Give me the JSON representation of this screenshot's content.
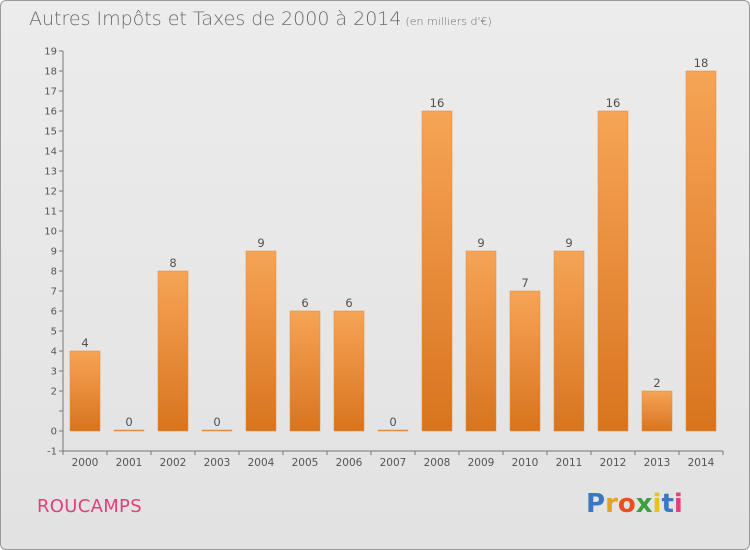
{
  "title": "Autres Impôts et Taxes de 2000 à 2014",
  "title_unit": "(en milliers d'€)",
  "place_name": "ROUCAMPS",
  "logo": {
    "letters": [
      "P",
      "r",
      "o",
      "x",
      "i",
      "t",
      "i"
    ],
    "colors": [
      "#3a78c4",
      "#e8a020",
      "#e85020",
      "#3aa040",
      "#e8c020",
      "#3a78c4",
      "#e04080"
    ]
  },
  "colors": {
    "bar_light": "#f6a456",
    "bar_dark": "#d8741e",
    "background": "#e6e6e6",
    "place": "#e0407a"
  },
  "chart_data": {
    "type": "bar",
    "title": "Autres Impôts et Taxes de 2000 à 2014",
    "categories": [
      "2000",
      "2001",
      "2002",
      "2003",
      "2004",
      "2005",
      "2006",
      "2007",
      "2008",
      "2009",
      "2010",
      "2011",
      "2012",
      "2013",
      "2014"
    ],
    "values": [
      4,
      0,
      8,
      0,
      9,
      6,
      6,
      0,
      16,
      9,
      7,
      9,
      16,
      2,
      18
    ],
    "ylim": [
      -1,
      19
    ],
    "yticks": [
      "-1",
      "0",
      "",
      "2",
      "3",
      "4",
      "5",
      "6",
      "7",
      "8",
      "9",
      "10",
      "11",
      "12",
      "13",
      "14",
      "15",
      "16",
      "17",
      "18",
      "19"
    ],
    "ytick_values": [
      -1,
      0,
      1,
      2,
      3,
      4,
      5,
      6,
      7,
      8,
      9,
      10,
      11,
      12,
      13,
      14,
      15,
      16,
      17,
      18,
      19
    ],
    "grid": false,
    "xlabel": "",
    "ylabel": ""
  }
}
